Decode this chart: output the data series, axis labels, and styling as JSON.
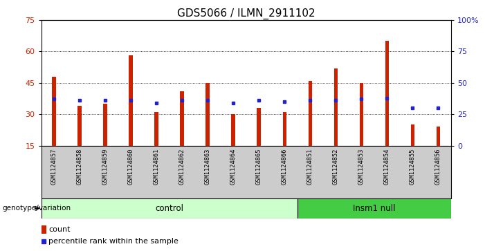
{
  "title": "GDS5066 / ILMN_2911102",
  "samples": [
    "GSM1124857",
    "GSM1124858",
    "GSM1124859",
    "GSM1124860",
    "GSM1124861",
    "GSM1124862",
    "GSM1124863",
    "GSM1124864",
    "GSM1124865",
    "GSM1124866",
    "GSM1124851",
    "GSM1124852",
    "GSM1124853",
    "GSM1124854",
    "GSM1124855",
    "GSM1124856"
  ],
  "counts": [
    48,
    34,
    35,
    58,
    31,
    41,
    45,
    30,
    33,
    31,
    46,
    52,
    45,
    65,
    25,
    24
  ],
  "percentiles": [
    37,
    36,
    36,
    36,
    34,
    36,
    36,
    34,
    36,
    35,
    36,
    36,
    37,
    38,
    30,
    30
  ],
  "control_count": 10,
  "insm1_count": 6,
  "ylim_left": [
    15,
    75
  ],
  "ylim_right": [
    0,
    100
  ],
  "yticks_left": [
    15,
    30,
    45,
    60,
    75
  ],
  "yticks_right": [
    0,
    25,
    50,
    75,
    100
  ],
  "bar_color": "#cc2200",
  "dot_color": "#2222cc",
  "control_bg": "#ccffcc",
  "insm1_bg": "#44cc44",
  "xlabel_area_bg": "#cccccc",
  "title_fontsize": 11,
  "tick_fontsize": 8,
  "label_fontsize": 8,
  "bar_width": 0.15,
  "control_label": "control",
  "insm1_label": "Insm1 null",
  "genotype_label": "genotype/variation",
  "legend_count": "count",
  "legend_percentile": "percentile rank within the sample"
}
